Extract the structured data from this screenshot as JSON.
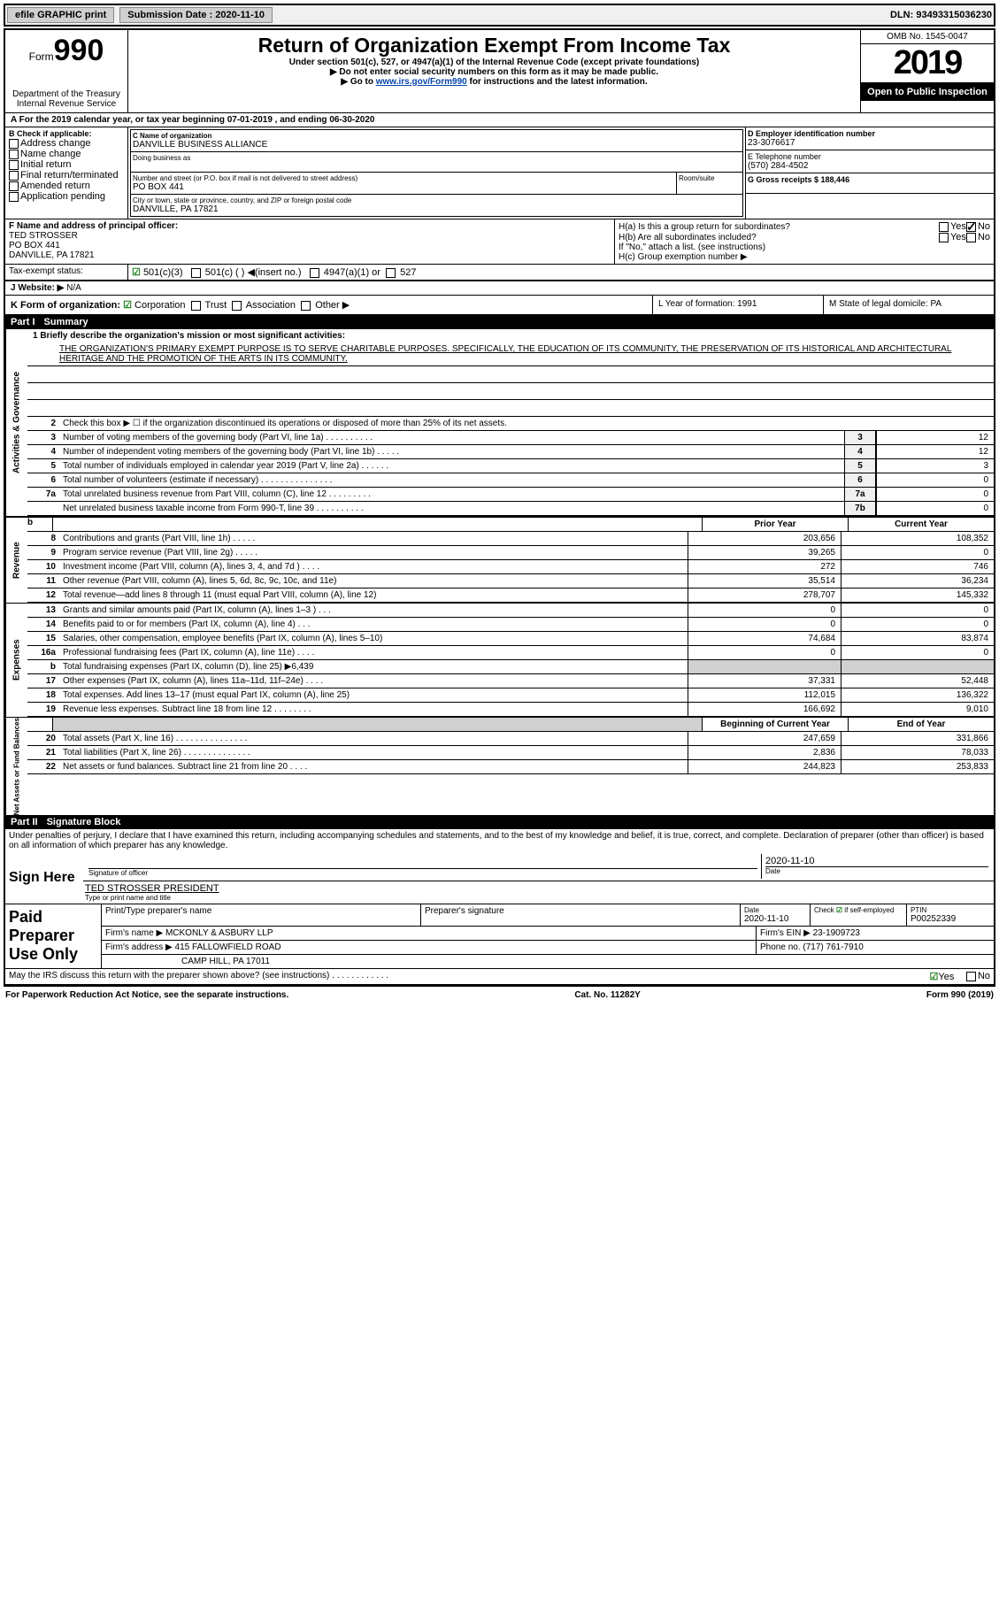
{
  "topbar": {
    "efile": "efile GRAPHIC print",
    "submission_label": "Submission Date : 2020-11-10",
    "dln_label": "DLN: 93493315036230"
  },
  "styling": {
    "link_color": "#0645ad",
    "check_color": "#1a7f1a",
    "part_header_bg": "#000000",
    "part_header_fg": "#ffffff",
    "shade_bg": "#d0d0d0"
  },
  "header": {
    "form_small": "Form",
    "form_big": "990",
    "dept": "Department of the Treasury\nInternal Revenue Service",
    "title": "Return of Organization Exempt From Income Tax",
    "sub1": "Under section 501(c), 527, or 4947(a)(1) of the Internal Revenue Code (except private foundations)",
    "sub2": "▶ Do not enter social security numbers on this form as it may be made public.",
    "sub3_pre": "▶ Go to ",
    "sub3_link": "www.irs.gov/Form990",
    "sub3_post": " for instructions and the latest information.",
    "omb": "OMB No. 1545-0047",
    "year": "2019",
    "open_public": "Open to Public Inspection"
  },
  "period": {
    "text": "A For the 2019 calendar year, or tax year beginning 07-01-2019    , and ending 06-30-2020"
  },
  "box_b": {
    "label": "B Check if applicable:",
    "items": [
      "Address change",
      "Name change",
      "Initial return",
      "Final return/terminated",
      "Amended return",
      "Application pending"
    ]
  },
  "box_c": {
    "name_label": "C Name of organization",
    "name": "DANVILLE BUSINESS ALLIANCE",
    "dba_label": "Doing business as",
    "addr_label": "Number and street (or P.O. box if mail is not delivered to street address)",
    "room_label": "Room/suite",
    "addr": "PO BOX 441",
    "city_label": "City or town, state or province, country, and ZIP or foreign postal code",
    "city": "DANVILLE, PA  17821"
  },
  "box_d": {
    "label": "D Employer identification number",
    "value": "23-3076617"
  },
  "box_e": {
    "label": "E Telephone number",
    "value": "(570) 284-4502"
  },
  "box_g": {
    "label": "G Gross receipts $ 188,446"
  },
  "box_f": {
    "label": "F  Name and address of principal officer:",
    "name": "TED STROSSER",
    "addr": "PO BOX 441",
    "city": "DANVILLE, PA  17821"
  },
  "box_h": {
    "ha": "H(a)  Is this a group return for subordinates?",
    "ha_yes": "Yes",
    "ha_no": "No",
    "hb": "H(b)  Are all subordinates included?",
    "hb_yes": "Yes",
    "hb_no": "No",
    "hb_note": "If \"No,\" attach a list. (see instructions)",
    "hc": "H(c)  Group exemption number ▶"
  },
  "tax_exempt": {
    "label": "Tax-exempt status:",
    "c3": "501(c)(3)",
    "c": "501(c) (  ) ◀(insert no.)",
    "a1": "4947(a)(1) or",
    "s527": "527"
  },
  "website": {
    "label": "J   Website: ▶",
    "value": "N/A"
  },
  "k_org": {
    "label": "K Form of organization:",
    "corp": "Corporation",
    "trust": "Trust",
    "assoc": "Association",
    "other": "Other ▶"
  },
  "l_year": {
    "label": "L Year of formation: 1991"
  },
  "m_state": {
    "label": "M State of legal domicile: PA"
  },
  "part1": {
    "label": "Part I",
    "title": "Summary"
  },
  "mission": {
    "q1": "1   Briefly describe the organization's mission or most significant activities:",
    "text": "THE ORGANIZATION'S PRIMARY EXEMPT PURPOSE IS TO SERVE CHARITABLE PURPOSES. SPECIFICALLY, THE EDUCATION OF ITS COMMUNITY, THE PRESERVATION OF ITS HISTORICAL AND ARCHITECTURAL HERITAGE AND THE PROMOTION OF THE ARTS IN ITS COMMUNITY."
  },
  "sections": {
    "activities": "Activities & Governance",
    "revenue": "Revenue",
    "expenses": "Expenses",
    "netassets": "Net Assets or Fund Balances"
  },
  "gov_lines": [
    {
      "n": "2",
      "d": "Check this box ▶ ☐  if the organization discontinued its operations or disposed of more than 25% of its net assets.",
      "box": "",
      "val": ""
    },
    {
      "n": "3",
      "d": "Number of voting members of the governing body (Part VI, line 1a)  .  .  .  .  .  .  .  .  .  .",
      "box": "3",
      "val": "12"
    },
    {
      "n": "4",
      "d": "Number of independent voting members of the governing body (Part VI, line 1b)  .  .  .  .  .",
      "box": "4",
      "val": "12"
    },
    {
      "n": "5",
      "d": "Total number of individuals employed in calendar year 2019 (Part V, line 2a)  .  .  .  .  .  .",
      "box": "5",
      "val": "3"
    },
    {
      "n": "6",
      "d": "Total number of volunteers (estimate if necessary)   .  .  .  .  .  .  .  .  .  .  .  .  .  .  .",
      "box": "6",
      "val": "0"
    },
    {
      "n": "7a",
      "d": "Total unrelated business revenue from Part VIII, column (C), line 12  .  .  .  .  .  .  .  .  .",
      "box": "7a",
      "val": "0"
    },
    {
      "n": "",
      "d": "Net unrelated business taxable income from Form 990-T, line 39   .  .  .  .  .  .  .  .  .  .",
      "box": "7b",
      "val": "0"
    }
  ],
  "col_headers": {
    "prior": "Prior Year",
    "curr": "Current Year"
  },
  "rev_lines": [
    {
      "n": "8",
      "d": "Contributions and grants (Part VIII, line 1h)   .  .  .  .  .",
      "p": "203,656",
      "c": "108,352"
    },
    {
      "n": "9",
      "d": "Program service revenue (Part VIII, line 2g)   .  .  .  .  .",
      "p": "39,265",
      "c": "0"
    },
    {
      "n": "10",
      "d": "Investment income (Part VIII, column (A), lines 3, 4, and 7d )   .  .  .  .",
      "p": "272",
      "c": "746"
    },
    {
      "n": "11",
      "d": "Other revenue (Part VIII, column (A), lines 5, 6d, 8c, 9c, 10c, and 11e)",
      "p": "35,514",
      "c": "36,234"
    },
    {
      "n": "12",
      "d": "Total revenue—add lines 8 through 11 (must equal Part VIII, column (A), line 12)",
      "p": "278,707",
      "c": "145,332"
    }
  ],
  "exp_lines": [
    {
      "n": "13",
      "d": "Grants and similar amounts paid (Part IX, column (A), lines 1–3 )  .  .  .",
      "p": "0",
      "c": "0"
    },
    {
      "n": "14",
      "d": "Benefits paid to or for members (Part IX, column (A), line 4)   .  .  .",
      "p": "0",
      "c": "0"
    },
    {
      "n": "15",
      "d": "Salaries, other compensation, employee benefits (Part IX, column (A), lines 5–10)",
      "p": "74,684",
      "c": "83,874"
    },
    {
      "n": "16a",
      "d": "Professional fundraising fees (Part IX, column (A), line 11e)   .  .  .  .",
      "p": "0",
      "c": "0"
    },
    {
      "n": "b",
      "d": "Total fundraising expenses (Part IX, column (D), line 25) ▶6,439",
      "p": "",
      "c": "",
      "shade": true
    },
    {
      "n": "17",
      "d": "Other expenses (Part IX, column (A), lines 11a–11d, 11f–24e)   .  .  .  .",
      "p": "37,331",
      "c": "52,448"
    },
    {
      "n": "18",
      "d": "Total expenses. Add lines 13–17 (must equal Part IX, column (A), line 25)",
      "p": "112,015",
      "c": "136,322"
    },
    {
      "n": "19",
      "d": "Revenue less expenses. Subtract line 18 from line 12  .  .  .  .  .  .  .  .",
      "p": "166,692",
      "c": "9,010"
    }
  ],
  "na_headers": {
    "begin": "Beginning of Current Year",
    "end": "End of Year"
  },
  "na_lines": [
    {
      "n": "20",
      "d": "Total assets (Part X, line 16)  .  .  .  .  .  .  .  .  .  .  .  .  .  .  .",
      "p": "247,659",
      "c": "331,866"
    },
    {
      "n": "21",
      "d": "Total liabilities (Part X, line 26)  .  .  .  .  .  .  .  .  .  .  .  .  .  .",
      "p": "2,836",
      "c": "78,033"
    },
    {
      "n": "22",
      "d": "Net assets or fund balances. Subtract line 21 from line 20   .  .  .  .",
      "p": "244,823",
      "c": "253,833"
    }
  ],
  "part2": {
    "label": "Part II",
    "title": "Signature Block"
  },
  "declaration": "Under penalties of perjury, I declare that I have examined this return, including accompanying schedules and statements, and to the best of my knowledge and belief, it is true, correct, and complete. Declaration of preparer (other than officer) is based on all information of which preparer has any knowledge.",
  "sign": {
    "label": "Sign Here",
    "sig_ofc": "Signature of officer",
    "date": "Date",
    "date_val": "2020-11-10",
    "name": "TED STROSSER PRESIDENT",
    "name_label": "Type or print name and title"
  },
  "paid": {
    "label": "Paid Preparer Use Only",
    "print_label": "Print/Type preparer's name",
    "sig_label": "Preparer's signature",
    "date_label": "Date",
    "date_val": "2020-11-10",
    "check_label": "Check ☑ if self-employed",
    "ptin_label": "PTIN",
    "ptin": "P00252339",
    "firm_name_label": "Firm's name     ▶",
    "firm_name": "MCKONLY & ASBURY LLP",
    "firm_ein_label": "Firm's EIN ▶",
    "firm_ein": "23-1909723",
    "firm_addr_label": "Firm's address ▶",
    "firm_addr1": "415 FALLOWFIELD ROAD",
    "firm_addr2": "CAMP HILL, PA  17011",
    "phone_label": "Phone no.",
    "phone": "(717) 761-7910"
  },
  "discuss": {
    "q": "May the IRS discuss this return with the preparer shown above? (see instructions)   .  .  .  .  .  .  .  .  .  .  .  .",
    "yes": "Yes",
    "no": "No"
  },
  "footer": {
    "left": "For Paperwork Reduction Act Notice, see the separate instructions.",
    "center": "Cat. No. 11282Y",
    "right": "Form 990 (2019)"
  }
}
